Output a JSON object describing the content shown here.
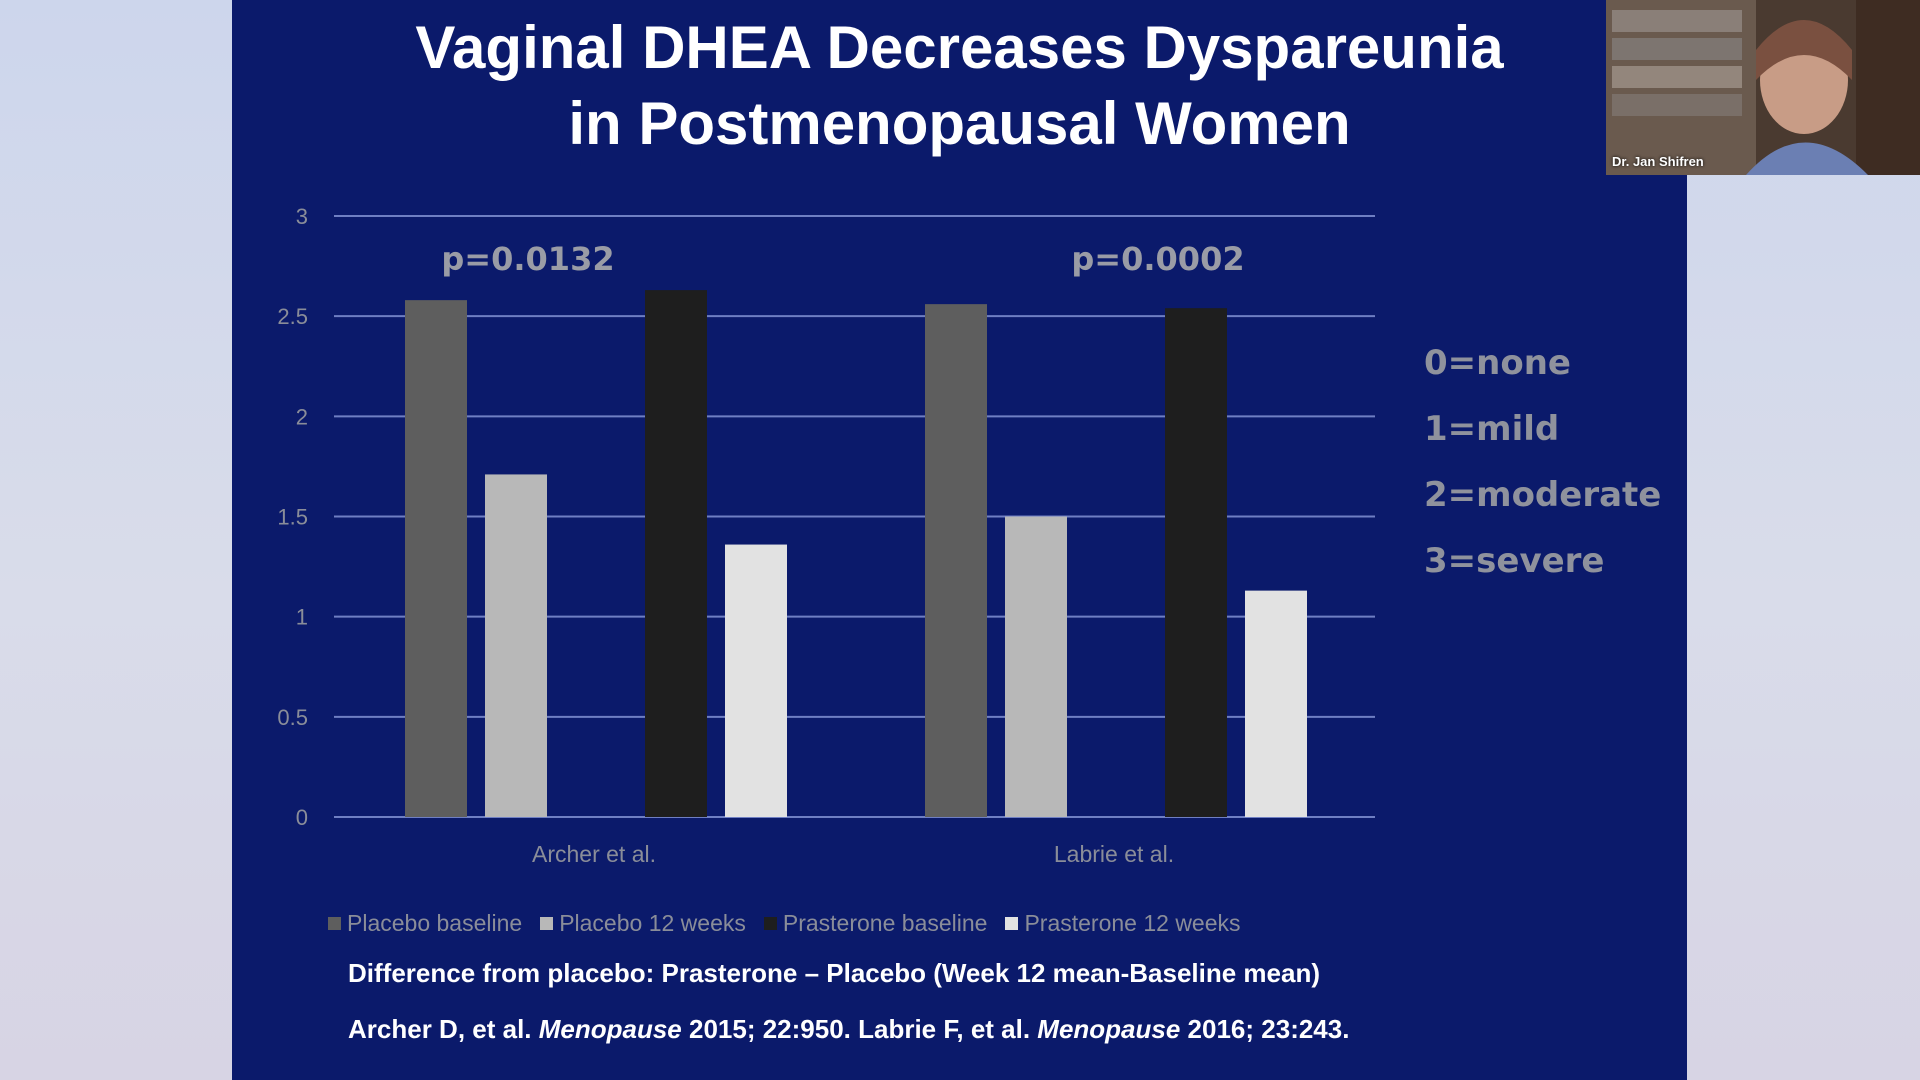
{
  "slide": {
    "title_line1": "Vaginal DHEA Decreases Dyspareunia",
    "title_line2": "in Postmenopausal Women",
    "scale_key": [
      "0=none",
      "1=mild",
      "2=moderate",
      "3=severe"
    ],
    "footnote_difference": "Difference from placebo:  Prasterone – Placebo (Week 12 mean-Baseline mean)",
    "citation": {
      "archer_authors": "Archer D, et al. ",
      "journal": "Menopause",
      "archer_ref": " 2015; 22:950. Labrie F, et al. ",
      "labrie_ref": " 2016; 23:243."
    }
  },
  "chart_data": {
    "type": "bar",
    "title": "",
    "xlabel": "",
    "ylabel": "",
    "ylim": [
      0,
      3
    ],
    "yticks": [
      "0",
      "0.5",
      "1",
      "1.5",
      "2",
      "2.5",
      "3"
    ],
    "categories": [
      "Archer et al.",
      "Labrie et al."
    ],
    "series": [
      {
        "name": "Placebo baseline",
        "color": "#5e5e5e",
        "values": [
          2.58,
          2.56
        ]
      },
      {
        "name": "Placebo 12 weeks",
        "color": "#b8b8b8",
        "values": [
          1.71,
          1.5
        ]
      },
      {
        "name": "Prasterone baseline",
        "color": "#1e1e1e",
        "values": [
          2.63,
          2.54
        ]
      },
      {
        "name": "Prasterone 12 weeks",
        "color": "#e2e2e2",
        "values": [
          1.36,
          1.13
        ]
      }
    ],
    "annotations": [
      "p=0.0132",
      "p=0.0002"
    ],
    "grid": true,
    "legend_position": "bottom"
  },
  "video": {
    "speaker_name": "Dr. Jan Shifren"
  },
  "colors": {
    "slide_background": "#0b1a6b",
    "gridline": "#6f7fc3",
    "axis_text": "#8a8d99",
    "annotation_text": "#9a9ca6"
  }
}
